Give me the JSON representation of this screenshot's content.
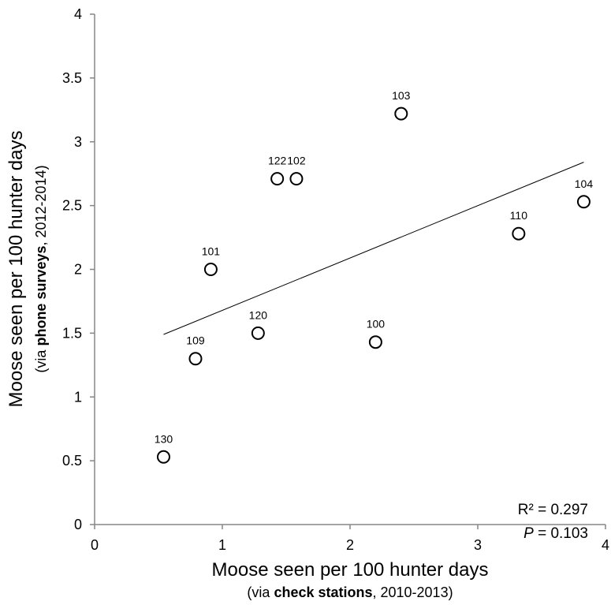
{
  "chart_data": {
    "type": "scatter",
    "x_axis": {
      "label_main": "Moose seen per 100 hunter days",
      "label_sub_prefix": "(via ",
      "label_sub_bold": "check stations",
      "label_sub_suffix": ", 2010-2013)",
      "range": [
        0,
        4
      ],
      "ticks": [
        0,
        1,
        2,
        3,
        4
      ]
    },
    "y_axis": {
      "label_main": "Moose seen per 100 hunter days",
      "label_sub_prefix": "(via ",
      "label_sub_bold": "phone surveys",
      "label_sub_suffix": ", 2012-2014)",
      "range": [
        0,
        4
      ],
      "ticks": [
        "0",
        "0.5",
        "1",
        "1.5",
        "2",
        "2.5",
        "3",
        "3.5",
        "4"
      ]
    },
    "points": [
      {
        "label": "130",
        "x": 0.54,
        "y": 0.53
      },
      {
        "label": "109",
        "x": 0.79,
        "y": 1.3
      },
      {
        "label": "101",
        "x": 0.91,
        "y": 2.0
      },
      {
        "label": "120",
        "x": 1.28,
        "y": 1.5
      },
      {
        "label": "122",
        "x": 1.43,
        "y": 2.71
      },
      {
        "label": "102",
        "x": 1.58,
        "y": 2.71
      },
      {
        "label": "100",
        "x": 2.2,
        "y": 1.43
      },
      {
        "label": "103",
        "x": 2.4,
        "y": 3.22
      },
      {
        "label": "110",
        "x": 3.32,
        "y": 2.28
      },
      {
        "label": "104",
        "x": 3.83,
        "y": 2.53
      }
    ],
    "trendline": {
      "x": [
        0.54,
        3.83
      ],
      "y": [
        1.49,
        2.84
      ]
    },
    "stats": {
      "r2_label": "R² = 0.297",
      "p_symbol": "P",
      "p_rest": " = 0.103"
    },
    "grid": false,
    "legend": "none"
  }
}
